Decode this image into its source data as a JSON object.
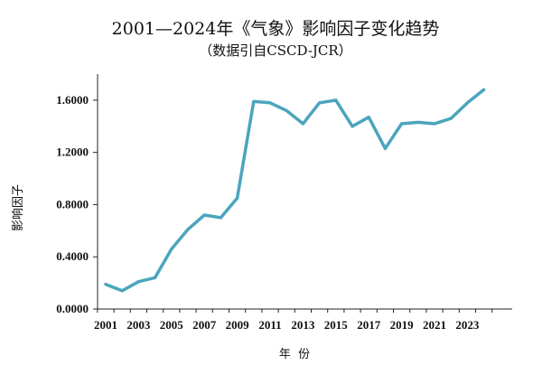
{
  "chart_data": {
    "type": "line",
    "title": "2001—2024年《气象》影响因子变化趋势",
    "subtitle": "（数据引自CSCD-JCR）",
    "xlabel": "年  份",
    "ylabel": "影响因子",
    "ylim": [
      0,
      1.8
    ],
    "yticks": [
      "0.0000",
      "0.4000",
      "0.8000",
      "1.2000",
      "1.6000"
    ],
    "xticks": [
      "2001",
      "2003",
      "2005",
      "2007",
      "2009",
      "2011",
      "2013",
      "2015",
      "2017",
      "2019",
      "2021",
      "2023"
    ],
    "grid": false,
    "series_color": "#4BA5BC",
    "x": [
      2001,
      2002,
      2003,
      2004,
      2005,
      2006,
      2007,
      2008,
      2009,
      2010,
      2011,
      2012,
      2013,
      2014,
      2015,
      2016,
      2017,
      2018,
      2019,
      2020,
      2021,
      2022,
      2023,
      2024
    ],
    "values": [
      0.19,
      0.14,
      0.21,
      0.24,
      0.46,
      0.61,
      0.72,
      0.7,
      0.85,
      1.59,
      1.58,
      1.52,
      1.42,
      1.58,
      1.6,
      1.4,
      1.47,
      1.23,
      1.42,
      1.43,
      1.42,
      1.46,
      1.58,
      1.68
    ]
  }
}
